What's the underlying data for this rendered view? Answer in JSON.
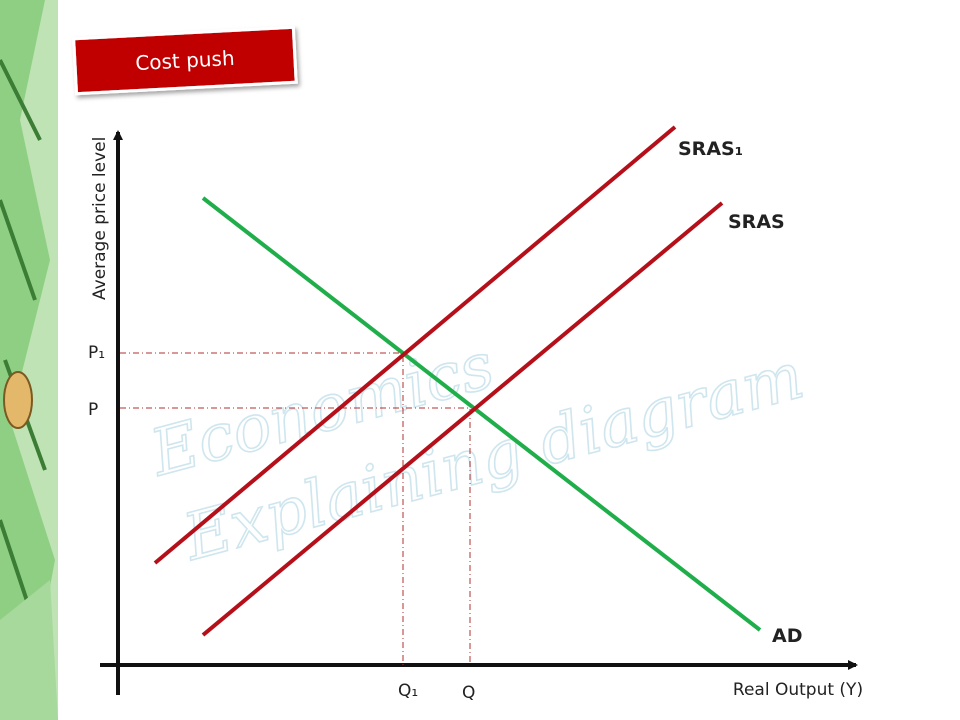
{
  "header": {
    "title": "Cost push"
  },
  "watermark": {
    "line1": "Economics",
    "line2": "Explaining diagram"
  },
  "axes": {
    "y_label": "Average price level",
    "x_label": "Real Output (Y)"
  },
  "curves": {
    "sras1": "SRAS₁",
    "sras": "SRAS",
    "ad": "AD"
  },
  "levels": {
    "p1": "P₁",
    "p": "P",
    "q1": "Q₁",
    "q": "Q"
  }
}
